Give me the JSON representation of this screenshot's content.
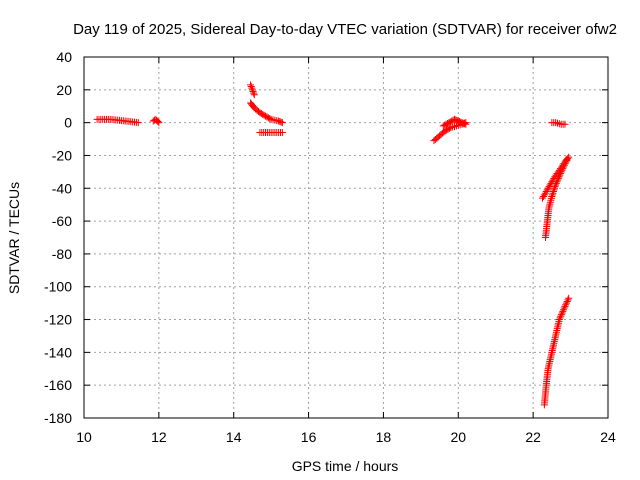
{
  "chart_data": {
    "type": "scatter",
    "title": "Day 119 of 2025, Sidereal Day-to-day VTEC variation (SDTVAR) for receiver ofw2",
    "xlabel": "GPS time / hours",
    "ylabel": "SDTVAR / TECUs",
    "xlim": [
      10,
      24
    ],
    "ylim": [
      -180,
      40
    ],
    "xticks": [
      10,
      12,
      14,
      16,
      18,
      20,
      22,
      24
    ],
    "yticks": [
      40,
      20,
      0,
      -20,
      -40,
      -60,
      -80,
      -100,
      -120,
      -140,
      -160,
      -180
    ],
    "grid": true,
    "legend": "none",
    "marker": "plus",
    "color": "#ff0000",
    "series": [
      {
        "points": [
          [
            10.35,
            2
          ],
          [
            10.5,
            2
          ],
          [
            10.7,
            2
          ],
          [
            10.9,
            1.5
          ],
          [
            11.1,
            1
          ],
          [
            11.3,
            0.5
          ],
          [
            11.45,
            0
          ]
        ]
      },
      {
        "points": [
          [
            11.85,
            1
          ],
          [
            11.92,
            2
          ],
          [
            12.0,
            0
          ]
        ]
      },
      {
        "points": [
          [
            14.45,
            23
          ],
          [
            14.5,
            20
          ],
          [
            14.55,
            17
          ]
        ]
      },
      {
        "points": [
          [
            14.45,
            12
          ],
          [
            14.55,
            9
          ],
          [
            14.7,
            6
          ],
          [
            14.85,
            4
          ],
          [
            15.0,
            2
          ],
          [
            15.2,
            1
          ],
          [
            15.3,
            0
          ]
        ]
      },
      {
        "points": [
          [
            14.7,
            -6
          ],
          [
            14.85,
            -6
          ],
          [
            15.0,
            -6
          ],
          [
            15.15,
            -6
          ],
          [
            15.3,
            -6
          ]
        ]
      },
      {
        "points": [
          [
            19.35,
            -11
          ],
          [
            19.5,
            -8
          ],
          [
            19.65,
            -5
          ],
          [
            19.8,
            -3
          ],
          [
            19.95,
            -2
          ],
          [
            20.1,
            -1
          ],
          [
            20.2,
            0
          ]
        ]
      },
      {
        "points": [
          [
            19.6,
            -2
          ],
          [
            19.75,
            0
          ],
          [
            19.9,
            2
          ],
          [
            20.0,
            1
          ],
          [
            20.1,
            0
          ],
          [
            20.2,
            -1
          ]
        ]
      },
      {
        "points": [
          [
            22.25,
            -46
          ],
          [
            22.4,
            -40
          ],
          [
            22.55,
            -34
          ],
          [
            22.7,
            -29
          ],
          [
            22.85,
            -24
          ],
          [
            22.95,
            -21
          ]
        ]
      },
      {
        "points": [
          [
            22.33,
            -70
          ],
          [
            22.38,
            -60
          ],
          [
            22.42,
            -52
          ],
          [
            22.5,
            -45
          ],
          [
            22.6,
            -38
          ],
          [
            22.75,
            -30
          ],
          [
            22.9,
            -23
          ]
        ]
      },
      {
        "points": [
          [
            22.3,
            -172
          ],
          [
            22.35,
            -160
          ],
          [
            22.4,
            -150
          ],
          [
            22.5,
            -140
          ],
          [
            22.6,
            -130
          ],
          [
            22.7,
            -120
          ],
          [
            22.85,
            -112
          ],
          [
            22.95,
            -107
          ]
        ]
      },
      {
        "points": [
          [
            22.5,
            0
          ],
          [
            22.6,
            0
          ],
          [
            22.75,
            -1
          ],
          [
            22.85,
            -1
          ]
        ]
      }
    ]
  }
}
